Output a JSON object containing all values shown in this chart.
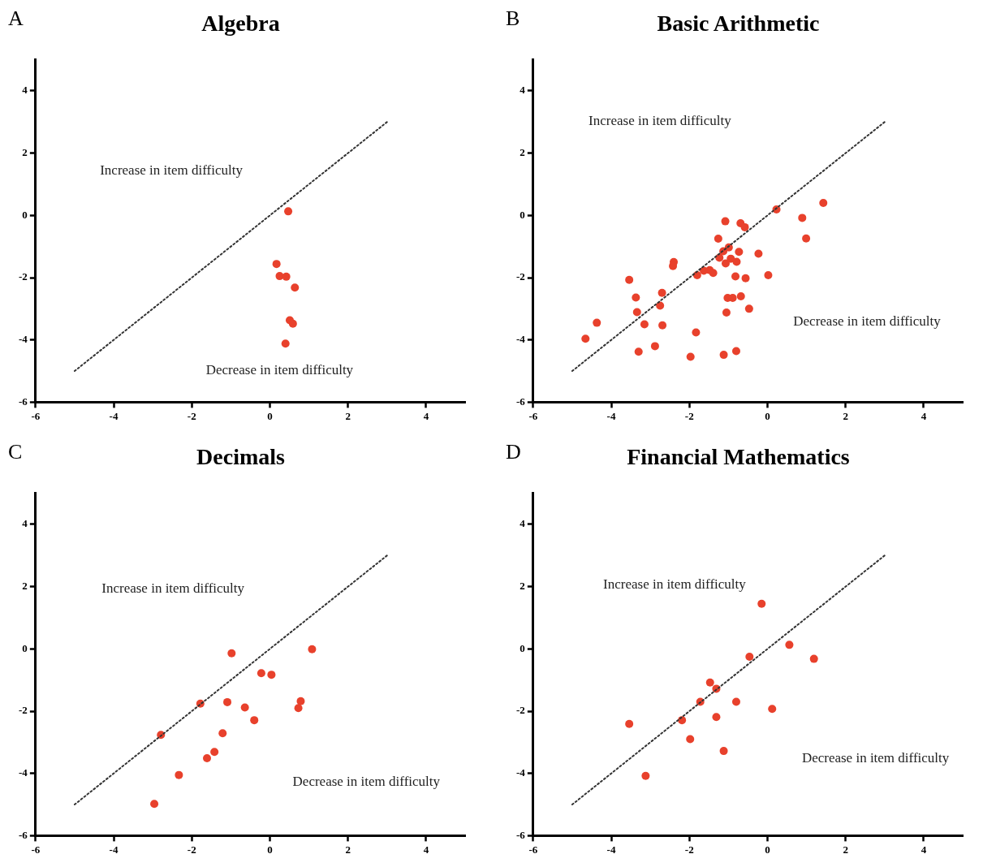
{
  "chart_data": [
    {
      "type": "scatter",
      "title": "Algebra",
      "subtitle": "A",
      "xlim": [
        -6,
        5
      ],
      "ylim": [
        -6,
        5
      ],
      "xticks": [
        -6,
        -4,
        -2,
        0,
        2,
        4
      ],
      "yticks": [
        -6,
        -4,
        -2,
        0,
        2,
        4
      ],
      "grid": false,
      "legend": false,
      "series": [
        {
          "type": "line",
          "color": "#333333",
          "line_style": "dotted",
          "marker": "none",
          "x": [
            -5,
            3
          ],
          "values": [
            -5,
            3
          ]
        },
        {
          "type": "scatter",
          "color": "#e8412c",
          "marker": "circle",
          "x": [
            0.47,
            0.17,
            0.2,
            0.25,
            0.42,
            0.64,
            0.51,
            0.59,
            0.4
          ],
          "values": [
            0.13,
            -1.56,
            null,
            -1.95,
            -1.97,
            -2.32,
            -3.37,
            -3.48,
            -4.12
          ]
        }
      ],
      "annotations": [
        "Increase in item difficulty",
        "Decrease in item difficulty"
      ]
    },
    {
      "type": "scatter",
      "title": "Basic Arithmetic",
      "subtitle": "B",
      "xlim": [
        -6,
        5
      ],
      "ylim": [
        -6,
        5
      ],
      "xticks": [
        -6,
        -4,
        -2,
        0,
        2,
        4
      ],
      "yticks": [
        -6,
        -4,
        -2,
        0,
        2,
        4
      ],
      "grid": false,
      "legend": false,
      "series": [
        {
          "type": "line",
          "color": "#333333",
          "line_style": "dotted",
          "marker": "none",
          "x": [
            -5,
            3
          ],
          "values": [
            -5,
            3
          ]
        },
        {
          "type": "scatter",
          "color": "#e8412c",
          "marker": "circle",
          "x": [
            -4.66,
            -4.37,
            -3.54,
            -3.37,
            -3.34,
            -3.15,
            -3.3,
            -2.88,
            -2.75,
            -2.7,
            -2.69,
            -2.4,
            -2.42,
            -1.83,
            -1.97,
            -1.8,
            -1.63,
            -1.48,
            -1.39,
            -1.26,
            -1.23,
            -1.13,
            -1.08,
            -1.07,
            -0.99,
            -0.94,
            -1.02,
            -0.89,
            -1.05,
            -1.12,
            -0.8,
            -0.82,
            -0.79,
            -0.73,
            -0.68,
            -0.69,
            -0.58,
            -0.56,
            -0.47,
            -0.23,
            0.02,
            0.23,
            0.89,
            0.99,
            1.43
          ],
          "values": [
            -3.96,
            -3.45,
            -2.07,
            -2.64,
            -3.11,
            -3.5,
            -4.38,
            -4.2,
            -2.9,
            -2.49,
            -3.53,
            -1.5,
            -1.63,
            -3.76,
            -4.54,
            -1.92,
            -1.78,
            -1.76,
            -1.85,
            -0.75,
            -1.36,
            -1.15,
            -0.19,
            -1.54,
            -1.03,
            -1.39,
            -2.65,
            -2.65,
            -3.12,
            -4.48,
            -4.36,
            -1.96,
            -1.49,
            -1.17,
            -2.6,
            -0.25,
            -0.38,
            -2.02,
            -3.0,
            -1.23,
            -1.92,
            0.19,
            -0.08,
            -0.74,
            0.4
          ]
        }
      ],
      "annotations": [
        "Increase in item difficulty",
        "Decrease in item difficulty"
      ]
    },
    {
      "type": "scatter",
      "title": "Decimals",
      "subtitle": "C",
      "xlim": [
        -6,
        5
      ],
      "ylim": [
        -6,
        5
      ],
      "xticks": [
        -6,
        -4,
        -2,
        0,
        2,
        4
      ],
      "yticks": [
        -6,
        -4,
        -2,
        0,
        2,
        4
      ],
      "grid": false,
      "legend": false,
      "series": [
        {
          "type": "line",
          "color": "#333333",
          "line_style": "dotted",
          "marker": "none",
          "x": [
            -5,
            3
          ],
          "values": [
            -5,
            3
          ]
        },
        {
          "type": "scatter",
          "color": "#e8412c",
          "marker": "circle",
          "x": [
            -0.98,
            1.08,
            -0.22,
            0.04,
            -1.78,
            -1.09,
            -0.64,
            0.79,
            0.73,
            -0.4,
            -2.79,
            -1.21,
            -1.42,
            -1.61,
            -2.33,
            -2.96
          ],
          "values": [
            -0.14,
            -0.01,
            -0.78,
            -0.83,
            -1.76,
            -1.71,
            -1.88,
            -1.68,
            -1.9,
            -2.29,
            -2.76,
            -2.71,
            -3.31,
            -3.51,
            -4.05,
            -4.98
          ]
        }
      ],
      "annotations": [
        "Increase in item difficulty",
        "Decrease in item difficulty"
      ]
    },
    {
      "type": "scatter",
      "title": "Financial Mathematics",
      "subtitle": "D",
      "xlim": [
        -6,
        5
      ],
      "ylim": [
        -6,
        5
      ],
      "xticks": [
        -6,
        -4,
        -2,
        0,
        2,
        4
      ],
      "yticks": [
        -6,
        -4,
        -2,
        0,
        2,
        4
      ],
      "grid": false,
      "legend": false,
      "series": [
        {
          "type": "line",
          "color": "#333333",
          "line_style": "dotted",
          "marker": "none",
          "x": [
            -5,
            3
          ],
          "values": [
            -5,
            3
          ]
        },
        {
          "type": "scatter",
          "color": "#e8412c",
          "marker": "circle",
          "x": [
            -0.15,
            0.56,
            1.19,
            -0.46,
            -1.47,
            -1.31,
            -1.72,
            -0.8,
            0.12,
            -1.31,
            -2.19,
            -3.54,
            -1.98,
            -1.12,
            -3.12
          ],
          "values": [
            1.45,
            0.13,
            -0.32,
            -0.25,
            -1.08,
            -1.28,
            -1.7,
            -1.7,
            -1.93,
            -2.19,
            -2.29,
            -2.41,
            -2.9,
            -3.28,
            -4.08
          ]
        }
      ],
      "annotations": [
        "Increase in item difficulty",
        "Decrease in item difficulty"
      ]
    }
  ]
}
